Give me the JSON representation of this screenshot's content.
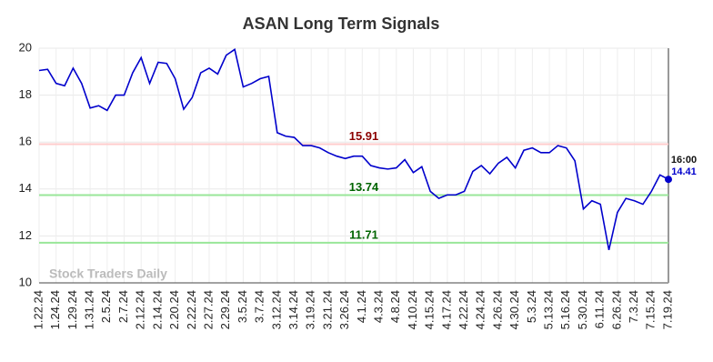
{
  "chart_data": {
    "type": "line",
    "title": "ASAN Long Term Signals",
    "watermark": "Stock Traders Daily",
    "categories": [
      "1.22.24",
      null,
      "1.24.24",
      null,
      "1.29.24",
      null,
      "1.31.24",
      null,
      "2.5.24",
      null,
      "2.7.24",
      null,
      "2.12.24",
      null,
      "2.14.24",
      null,
      "2.20.24",
      null,
      "2.22.24",
      null,
      "2.27.24",
      null,
      "2.29.24",
      null,
      "3.5.24",
      null,
      "3.7.24",
      null,
      "3.12.24",
      null,
      "3.14.24",
      null,
      "3.19.24",
      null,
      "3.21.24",
      null,
      "3.26.24",
      null,
      "4.1.24",
      null,
      "4.3.24",
      null,
      "4.8.24",
      null,
      "4.10.24",
      null,
      "4.15.24",
      null,
      "4.17.24",
      null,
      "4.22.24",
      null,
      "4.24.24",
      null,
      "4.26.24",
      null,
      "4.30.24",
      null,
      "5.3.24",
      null,
      "5.13.24",
      null,
      "5.16.24",
      null,
      "5.30.24",
      null,
      "6.11.24",
      null,
      "6.26.24",
      null,
      "7.3.24",
      null,
      "7.15.24",
      null,
      "7.19.24"
    ],
    "series": [
      {
        "name": "ASAN",
        "color": "#0000cc",
        "values": [
          19.05,
          19.1,
          18.5,
          18.4,
          19.15,
          18.5,
          17.45,
          17.55,
          17.35,
          18.0,
          18.0,
          18.95,
          19.6,
          18.5,
          19.4,
          19.35,
          18.7,
          17.4,
          17.9,
          18.95,
          19.15,
          18.9,
          19.7,
          19.95,
          18.35,
          18.5,
          18.7,
          18.8,
          16.4,
          16.25,
          16.2,
          15.85,
          15.85,
          15.75,
          15.55,
          15.4,
          15.3,
          15.4,
          15.4,
          15.0,
          14.9,
          14.85,
          14.9,
          15.25,
          14.7,
          14.95,
          13.9,
          13.6,
          13.75,
          13.75,
          13.9,
          14.75,
          15.0,
          14.65,
          15.1,
          15.35,
          14.9,
          15.65,
          15.75,
          15.55,
          15.55,
          15.85,
          15.75,
          15.2,
          13.15,
          13.5,
          13.35,
          11.4,
          13.0,
          13.6,
          13.5,
          13.35,
          13.9,
          14.6,
          14.41
        ]
      }
    ],
    "hlines": [
      {
        "value": 15.91,
        "color": "#ffcccc",
        "label_color": "#8b0000"
      },
      {
        "value": 13.74,
        "color": "#99e699",
        "label_color": "#006400"
      },
      {
        "value": 11.71,
        "color": "#99e699",
        "label_color": "#006400"
      }
    ],
    "last_time": "16:00",
    "ylim": [
      10,
      20
    ],
    "yticks": [
      10,
      12,
      14,
      16,
      18,
      20
    ],
    "grid": true
  }
}
